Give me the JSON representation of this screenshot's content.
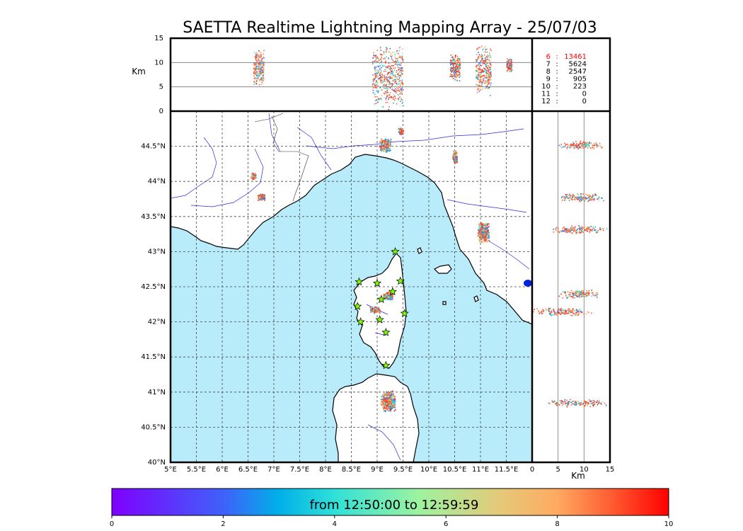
{
  "title": "SAETTA Realtime Lightning Mapping Array - 25/07/03",
  "colors": {
    "sea": "#b8ecfb",
    "land": "#ffffff",
    "station_fill": "#7cfc00",
    "highlight_stat": "#ff0000",
    "sample": "#ff5533"
  },
  "chart_data": [
    {
      "panel": "altitude-vs-longitude",
      "type": "scatter",
      "ylabel": "Km",
      "ylim": [
        0,
        15
      ],
      "yticks": [
        "0",
        "5",
        "10",
        "15"
      ],
      "xlim": [
        5,
        12
      ],
      "reference_lines_km": [
        5,
        10
      ],
      "clusters": [
        {
          "lon_min": 6.6,
          "lon_max": 6.8,
          "alt_min": 5,
          "alt_max": 13
        },
        {
          "lon_min": 8.9,
          "lon_max": 9.5,
          "alt_min": 0,
          "alt_max": 14
        },
        {
          "lon_min": 10.4,
          "lon_max": 10.6,
          "alt_min": 6,
          "alt_max": 12
        },
        {
          "lon_min": 10.9,
          "lon_max": 11.2,
          "alt_min": 3,
          "alt_max": 14
        },
        {
          "lon_min": 11.5,
          "lon_max": 11.6,
          "alt_min": 8,
          "alt_max": 11
        }
      ]
    },
    {
      "panel": "plan-view-map",
      "type": "scatter",
      "xlim": [
        5,
        12
      ],
      "ylim": [
        40,
        45
      ],
      "xticks": [
        "5°E",
        "5.5°E",
        "6°E",
        "6.5°E",
        "7°E",
        "7.5°E",
        "8°E",
        "8.5°E",
        "9°E",
        "9.5°E",
        "10°E",
        "10.5°E",
        "11°E",
        "11.5°E"
      ],
      "yticks": [
        "40°N",
        "40.5°N",
        "41°N",
        "41.5°N",
        "42°N",
        "42.5°N",
        "43°N",
        "43.5°N",
        "44°N",
        "44.5°N"
      ],
      "grid": true,
      "stations": [
        {
          "lon": 9.35,
          "lat": 43.0
        },
        {
          "lon": 8.65,
          "lat": 42.57
        },
        {
          "lon": 9.0,
          "lat": 42.55
        },
        {
          "lon": 9.45,
          "lat": 42.58
        },
        {
          "lon": 9.3,
          "lat": 42.43
        },
        {
          "lon": 9.08,
          "lat": 42.32
        },
        {
          "lon": 8.62,
          "lat": 42.22
        },
        {
          "lon": 9.53,
          "lat": 42.12
        },
        {
          "lon": 8.68,
          "lat": 42.0
        },
        {
          "lon": 9.05,
          "lat": 42.03
        },
        {
          "lon": 9.17,
          "lat": 41.85
        },
        {
          "lon": 9.17,
          "lat": 41.38
        }
      ],
      "clusters": [
        {
          "lon": 6.75,
          "lat": 43.78,
          "dlon": 0.08,
          "dlat": 0.05
        },
        {
          "lon": 6.6,
          "lat": 44.08,
          "dlon": 0.05,
          "dlat": 0.05
        },
        {
          "lon": 9.15,
          "lat": 44.52,
          "dlon": 0.12,
          "dlat": 0.1
        },
        {
          "lon": 9.45,
          "lat": 44.72,
          "dlon": 0.05,
          "dlat": 0.05
        },
        {
          "lon": 10.5,
          "lat": 44.35,
          "dlon": 0.05,
          "dlat": 0.1
        },
        {
          "lon": 11.05,
          "lat": 43.28,
          "dlon": 0.12,
          "dlat": 0.15
        },
        {
          "lon": 9.2,
          "lat": 42.38,
          "dlon": 0.1,
          "dlat": 0.06
        },
        {
          "lon": 8.95,
          "lat": 42.18,
          "dlon": 0.1,
          "dlat": 0.05
        },
        {
          "lon": 9.2,
          "lat": 40.88,
          "dlon": 0.15,
          "dlat": 0.15
        }
      ]
    },
    {
      "panel": "latitude-vs-altitude",
      "type": "scatter",
      "xlabel": "Km",
      "xlim": [
        0,
        15
      ],
      "xticks": [
        "0",
        "5",
        "10",
        "15"
      ],
      "reference_lines_km": [
        5,
        10
      ],
      "clusters": [
        {
          "alt_min": 5,
          "alt_max": 14,
          "lat": 44.52
        },
        {
          "alt_min": 5,
          "alt_max": 14,
          "lat": 43.78
        },
        {
          "alt_min": 3,
          "alt_max": 15,
          "lat": 43.32
        },
        {
          "alt_min": 5,
          "alt_max": 13,
          "lat": 42.4
        },
        {
          "alt_min": 0,
          "alt_max": 12,
          "lat": 42.15
        },
        {
          "alt_min": 2,
          "alt_max": 15,
          "lat": 40.85
        }
      ]
    },
    {
      "panel": "colorbar",
      "type": "heatmap",
      "range": [
        0,
        10
      ],
      "ticks": [
        "0",
        "2",
        "4",
        "6",
        "8",
        "10"
      ],
      "label": "from 12:50:00 to 12:59:59"
    }
  ],
  "station_counts": [
    {
      "stations": "6",
      "count": "13461",
      "highlight": true
    },
    {
      "stations": "7",
      "count": "5624",
      "highlight": false
    },
    {
      "stations": "8",
      "count": "2547",
      "highlight": false
    },
    {
      "stations": "9",
      "count": "905",
      "highlight": false
    },
    {
      "stations": "10",
      "count": "223",
      "highlight": false
    },
    {
      "stations": "11",
      "count": "0",
      "highlight": false
    },
    {
      "stations": "12",
      "count": "0",
      "highlight": false
    }
  ]
}
